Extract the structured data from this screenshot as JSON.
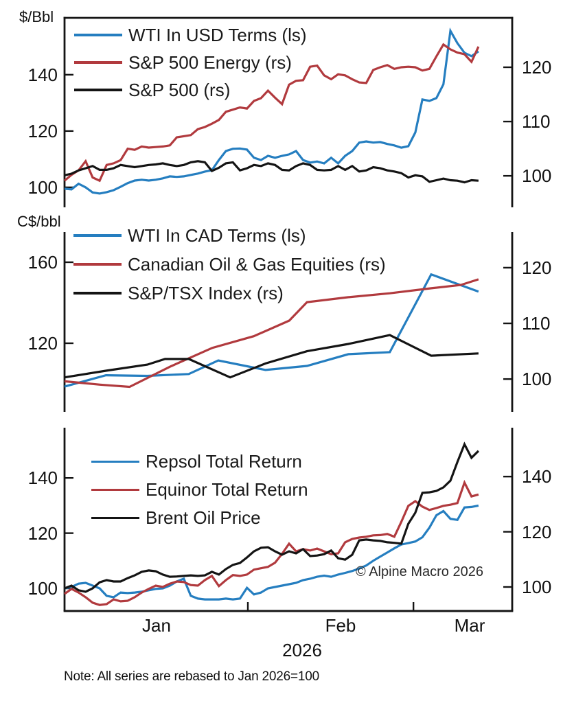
{
  "colors": {
    "blue": "#257ec0",
    "red": "#b13a3e",
    "black": "#141414",
    "text": "#111111"
  },
  "watermark": "© Alpine Macro 2026",
  "note": "Note: All series are rebased to Jan 2026=100",
  "x_axis": {
    "month_labels": [
      "Jan",
      "Feb",
      "Mar"
    ],
    "month_label_days": [
      15.5,
      46.7,
      68.5
    ],
    "month_tick_days": [
      31,
      59
    ],
    "year_label": "2026",
    "day_range": [
      0,
      75.7
    ]
  },
  "chart_data": [
    {
      "type": "line",
      "unit_label": "$/Bbl",
      "legend_position": "upper left",
      "left_axis": {
        "ticks": [
          100,
          120,
          140
        ],
        "range": [
          92.9,
          160.2
        ]
      },
      "right_axis": {
        "ticks": [
          100,
          110,
          120
        ],
        "range": [
          94.2,
          129.1
        ]
      },
      "series": [
        {
          "name": "WTI In USD Terms (ls)",
          "color": "blue",
          "axis": "left",
          "x_start": 0,
          "x_end": 70,
          "values": [
            99.5,
            99.3,
            101.3,
            100.0,
            98.2,
            97.8,
            98.3,
            99.0,
            100.2,
            101.5,
            102.4,
            102.7,
            102.4,
            102.7,
            103.2,
            103.9,
            103.7,
            103.9,
            104.4,
            104.9,
            105.6,
            106.1,
            109.7,
            112.9,
            113.7,
            113.8,
            113.4,
            110.5,
            109.7,
            111.2,
            110.5,
            111.2,
            111.7,
            112.9,
            109.7,
            108.8,
            109.2,
            108.5,
            110.5,
            108.5,
            111.2,
            112.9,
            115.9,
            116.3,
            115.9,
            116.1,
            115.4,
            114.9,
            114.1,
            114.6,
            119.5,
            131.2,
            130.7,
            131.7,
            136.6,
            155.6,
            151.2,
            147.8,
            146.6,
            148.3
          ]
        },
        {
          "name": "S&P 500 Energy (rs)",
          "color": "red",
          "axis": "right",
          "x_start": 0,
          "x_end": 70,
          "values": [
            99.1,
            100.2,
            101.0,
            102.7,
            99.7,
            99.1,
            102.0,
            102.3,
            102.9,
            105.0,
            104.8,
            105.4,
            105.2,
            105.3,
            105.4,
            105.6,
            107.1,
            107.3,
            107.5,
            108.6,
            109.0,
            109.6,
            110.3,
            111.8,
            112.2,
            112.6,
            112.4,
            113.8,
            114.3,
            115.7,
            114.4,
            113.2,
            116.8,
            117.5,
            117.6,
            120.1,
            120.3,
            118.5,
            117.8,
            118.7,
            118.5,
            117.8,
            117.2,
            117.1,
            119.5,
            120.0,
            120.4,
            119.7,
            120.0,
            120.1,
            120.0,
            119.4,
            119.7,
            122.0,
            124.2,
            123.3,
            122.7,
            122.4,
            121.0,
            123.8
          ]
        },
        {
          "name": "S&P 500 (rs)",
          "color": "black",
          "axis": "right",
          "x_start": 0,
          "x_end": 70,
          "values": [
            100.1,
            100.4,
            101.0,
            101.4,
            101.8,
            101.1,
            101.1,
            101.4,
            102.0,
            101.8,
            101.6,
            101.8,
            102.0,
            102.1,
            102.3,
            102.0,
            101.8,
            102.0,
            102.5,
            102.7,
            102.5,
            100.9,
            101.5,
            102.3,
            102.5,
            101.0,
            101.4,
            102.0,
            101.8,
            102.3,
            102.0,
            101.1,
            101.0,
            101.8,
            102.3,
            102.0,
            101.1,
            101.0,
            101.1,
            101.8,
            101.1,
            101.8,
            100.8,
            101.0,
            101.6,
            101.4,
            101.0,
            100.8,
            100.5,
            99.7,
            100.1,
            99.9,
            98.9,
            99.2,
            99.5,
            99.2,
            99.1,
            98.8,
            99.2,
            99.1
          ]
        }
      ]
    },
    {
      "type": "line",
      "unit_label": "C$/bbl",
      "legend_position": "upper left",
      "left_axis": {
        "ticks": [
          120,
          160
        ],
        "range": [
          86.1,
          174.9
        ]
      },
      "right_axis": {
        "ticks": [
          100,
          110,
          120
        ],
        "range": [
          94.1,
          126.4
        ]
      },
      "series": [
        {
          "name": "WTI In CAD Terms (ls)",
          "color": "blue",
          "axis": "left",
          "x": [
            0,
            7,
            14,
            21,
            26,
            34,
            41,
            48,
            55,
            62,
            70
          ],
          "values": [
            98.6,
            104.2,
            103.9,
            104.8,
            111.5,
            106.8,
            108.8,
            114.6,
            115.6,
            154.0,
            145.5
          ]
        },
        {
          "name": "Canadian Oil & Gas Equities (rs)",
          "color": "red",
          "axis": "right",
          "x": [
            0,
            6,
            11,
            18,
            25,
            32,
            38,
            41,
            48,
            55,
            62,
            67,
            70
          ],
          "values": [
            99.6,
            99.0,
            98.6,
            102.3,
            105.6,
            107.7,
            110.5,
            113.8,
            114.7,
            115.4,
            116.3,
            116.9,
            117.9
          ]
        },
        {
          "name": "S&P/TSX Index (rs)",
          "color": "black",
          "axis": "right",
          "x": [
            0,
            7,
            14,
            17,
            21,
            28,
            34,
            41,
            48,
            55,
            62,
            70
          ],
          "values": [
            100.3,
            101.5,
            102.6,
            103.6,
            103.6,
            100.3,
            102.8,
            105.0,
            106.3,
            107.9,
            104.2,
            104.6
          ]
        }
      ]
    },
    {
      "type": "line",
      "unit_label": "",
      "legend_position": "upper left",
      "left_axis": {
        "ticks": [
          100,
          120,
          140
        ],
        "range": [
          91.8,
          158.2
        ]
      },
      "right_axis": {
        "ticks": [
          100,
          120,
          140
        ],
        "range": [
          91.3,
          157.7
        ]
      },
      "series": [
        {
          "name": "Repsol Total Return",
          "color": "blue",
          "axis": "left",
          "x_start": 0,
          "x_end": 70,
          "values": [
            100.0,
            100.5,
            101.7,
            102.0,
            101.0,
            100.0,
            97.3,
            96.8,
            98.5,
            98.3,
            98.5,
            98.8,
            99.3,
            99.8,
            100.0,
            101.0,
            102.5,
            103.5,
            97.3,
            96.3,
            96.0,
            96.0,
            96.0,
            96.3,
            96.0,
            96.3,
            100.2,
            97.8,
            98.5,
            100.0,
            100.5,
            101.0,
            101.5,
            102.0,
            103.0,
            103.5,
            104.2,
            104.6,
            104.2,
            105.0,
            105.6,
            106.3,
            107.2,
            108.3,
            110.0,
            111.5,
            113.0,
            114.5,
            115.9,
            116.4,
            117.0,
            118.5,
            122.0,
            126.5,
            128.0,
            125.2,
            124.8,
            129.3,
            129.5,
            130.0
          ]
        },
        {
          "name": "Equinor Total Return",
          "color": "red",
          "axis": "left",
          "x_start": 0,
          "x_end": 70,
          "values": [
            98.0,
            99.8,
            98.5,
            96.8,
            94.8,
            94.0,
            94.3,
            96.0,
            95.3,
            95.5,
            96.8,
            98.5,
            99.8,
            101.0,
            100.5,
            101.7,
            102.5,
            102.3,
            101.2,
            101.0,
            103.0,
            104.5,
            100.8,
            103.0,
            104.8,
            104.5,
            105.0,
            106.8,
            107.3,
            107.8,
            109.3,
            112.5,
            116.2,
            113.4,
            114.2,
            113.7,
            114.4,
            113.4,
            112.4,
            112.7,
            116.7,
            117.9,
            118.4,
            118.7,
            119.2,
            119.3,
            119.7,
            118.7,
            124.1,
            129.9,
            131.6,
            129.6,
            128.4,
            129.1,
            129.9,
            130.3,
            130.9,
            138.3,
            133.3,
            134.0
          ]
        },
        {
          "name": "Brent Oil Price",
          "color": "black",
          "axis": "left",
          "x_start": 0,
          "x_end": 70,
          "values": [
            100.0,
            101.0,
            99.3,
            98.8,
            100.0,
            102.2,
            103.0,
            102.5,
            102.5,
            103.7,
            104.7,
            106.0,
            106.5,
            106.2,
            105.0,
            104.2,
            104.3,
            104.5,
            104.7,
            104.5,
            104.7,
            106.0,
            105.0,
            107.0,
            108.5,
            109.2,
            111.2,
            113.4,
            114.7,
            114.9,
            113.4,
            112.2,
            113.4,
            112.7,
            114.2,
            111.7,
            111.9,
            112.4,
            113.7,
            110.9,
            110.4,
            112.2,
            117.4,
            117.7,
            117.4,
            117.2,
            116.7,
            116.5,
            116.2,
            123.4,
            127.4,
            134.6,
            134.8,
            135.3,
            136.6,
            139.0,
            145.8,
            152.2,
            147.3,
            149.8
          ]
        }
      ]
    }
  ]
}
